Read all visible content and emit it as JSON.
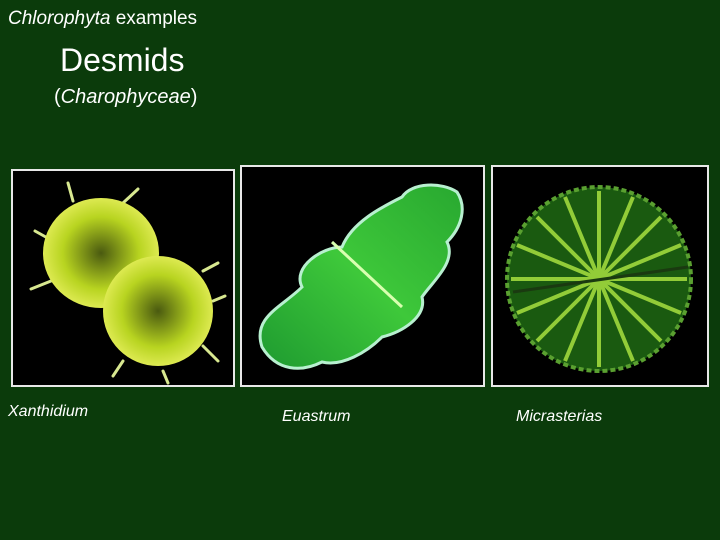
{
  "header": {
    "title_italic": "Chlorophyta",
    "title_rest": "examples"
  },
  "heading": "Desmids",
  "subheading": {
    "open": "(",
    "italic": "Charophyceae",
    "close": ")"
  },
  "images": [
    {
      "caption": "Xanthidium"
    },
    {
      "caption": "Euastrum"
    },
    {
      "caption": "Micrasterias"
    }
  ]
}
